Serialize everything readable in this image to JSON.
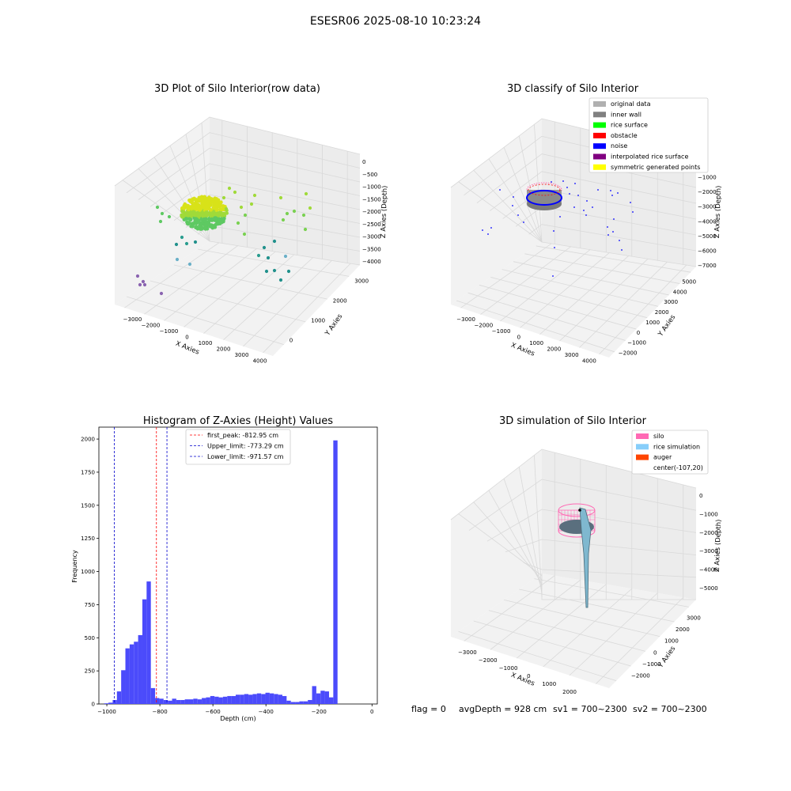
{
  "suptitle": "ESESR06 2025-08-10 10:23:24",
  "status_line": {
    "flag": "flag = 0",
    "avg_depth": "avgDepth = 928 cm",
    "sv1": "sv1 = 700~2300",
    "sv2": "sv2 = 700~2300"
  },
  "colors": {
    "hist_bar": "#4b4bfb",
    "first_peak": "#ff0000",
    "limit": "#0000cc",
    "silo": "#ff69b4",
    "rice_sim": "#87cefa",
    "auger": "#ff4500",
    "inner_wall": "#808080",
    "rice_surface": "#00ff00",
    "obstacle": "#ff0000",
    "noise": "#0000ff",
    "interpolated": "#800080",
    "symmetric": "#ffff00",
    "original": "#b0b0b0"
  },
  "chart_data": [
    {
      "type": "scatter",
      "title": "3D Plot of Silo Interior(row data)",
      "xlabel": "X Axies",
      "ylabel": "Y Axies",
      "zlabel": "Z Axies (Depth)",
      "x_ticks": [
        "−3000",
        "−2000",
        "−1000",
        "0",
        "1000",
        "2000",
        "3000",
        "4000"
      ],
      "y_ticks": [
        "0",
        "1000",
        "2000",
        "3000"
      ],
      "z_ticks": [
        "0",
        "−500",
        "−1000",
        "−1500",
        "−2000",
        "−2500",
        "−3000",
        "−3500",
        "−4000"
      ],
      "colormap": "viridis"
    },
    {
      "type": "scatter",
      "title": "3D classify of Silo Interior",
      "xlabel": "X Axies",
      "ylabel": "Y Axies",
      "zlabel": "Z Axies (Depth)",
      "x_ticks": [
        "−3000",
        "−2000",
        "−1000",
        "0",
        "1000",
        "2000",
        "3000",
        "4000"
      ],
      "y_ticks": [
        "−2000",
        "−1000",
        "0",
        "1000",
        "2000",
        "3000",
        "4000",
        "5000"
      ],
      "z_ticks": [
        "0",
        "−1000",
        "−2000",
        "−3000",
        "−4000",
        "−5000",
        "−6000",
        "−7000"
      ],
      "legend": [
        "original data",
        "inner wall",
        "rice surface",
        "obstacle",
        "noise",
        "interpolated rice surface",
        "symmetric generated points"
      ],
      "legend_placement": "top-right"
    },
    {
      "type": "bar",
      "title": "Histogram of Z-Axies (Height) Values",
      "xlabel": "Depth (cm)",
      "ylabel": "Frequency",
      "xlim": [
        -1030,
        20
      ],
      "ylim": [
        0,
        2090
      ],
      "x_ticks": [
        "−1000",
        "−800",
        "−600",
        "−400",
        "−200",
        "0"
      ],
      "y_ticks": [
        "0",
        "250",
        "500",
        "750",
        "1000",
        "1250",
        "1500",
        "1750",
        "2000"
      ],
      "bin_width": 16,
      "bin_starts": [
        -1010,
        -994,
        -978,
        -962,
        -946,
        -930,
        -914,
        -898,
        -882,
        -866,
        -850,
        -834,
        -818,
        -802,
        -786,
        -770,
        -754,
        -738,
        -722,
        -706,
        -690,
        -674,
        -658,
        -642,
        -626,
        -610,
        -594,
        -578,
        -562,
        -546,
        -530,
        -514,
        -498,
        -482,
        -466,
        -450,
        -434,
        -418,
        -402,
        -386,
        -370,
        -354,
        -338,
        -322,
        -306,
        -290,
        -274,
        -258,
        -242,
        -226,
        -210,
        -194,
        -178,
        -162,
        -146,
        -130,
        -114,
        -98,
        -82,
        -66,
        -50,
        -34,
        -18,
        -2
      ],
      "values": [
        5,
        10,
        30,
        95,
        255,
        420,
        450,
        470,
        520,
        790,
        925,
        120,
        45,
        40,
        30,
        25,
        40,
        30,
        30,
        35,
        35,
        40,
        35,
        45,
        50,
        60,
        55,
        50,
        55,
        60,
        60,
        70,
        70,
        75,
        70,
        75,
        80,
        75,
        85,
        80,
        75,
        70,
        60,
        25,
        15,
        15,
        20,
        20,
        30,
        135,
        80,
        100,
        95,
        50,
        1990,
        0,
        0,
        0,
        0,
        0,
        0,
        0,
        0,
        0
      ],
      "reference_lines": [
        {
          "label": "first_peak: -812.95 cm",
          "value": -812.95,
          "style": "dashed",
          "color": "red"
        },
        {
          "label": "Upper_limit: -773.29 cm",
          "value": -773.29,
          "style": "dashed",
          "color": "blue"
        },
        {
          "label": "Lower_limit: -971.57 cm",
          "value": -971.57,
          "style": "dashed",
          "color": "blue"
        }
      ],
      "grid": false,
      "legend_placement": "top-center"
    },
    {
      "type": "area",
      "title": "3D simulation of Silo Interior",
      "xlabel": "X Axies",
      "ylabel": "Y Axies",
      "zlabel": "Z Axies (Depth)",
      "x_ticks": [
        "−3000",
        "−2000",
        "−1000",
        "0",
        "1000",
        "2000"
      ],
      "y_ticks": [
        "−2000",
        "−1000",
        "0",
        "1000",
        "2000",
        "3000"
      ],
      "z_ticks": [
        "0",
        "−1000",
        "−2000",
        "−3000",
        "−4000",
        "−5000"
      ],
      "legend": [
        "silo",
        "rice simulation",
        "auger",
        "center(-107,20)"
      ],
      "legend_placement": "top-right"
    }
  ]
}
